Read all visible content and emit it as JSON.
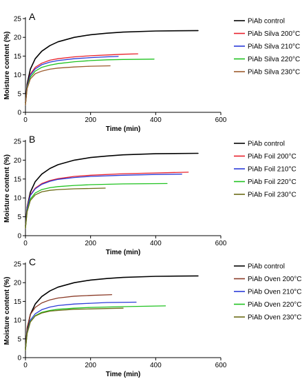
{
  "chart_data": [
    {
      "type": "line",
      "panel_label": "A",
      "xlabel": "Time (min)",
      "ylabel": "Moisture content (%)",
      "xlim": [
        0,
        600
      ],
      "ylim": [
        0,
        25
      ],
      "xticks": [
        0,
        200,
        400,
        600
      ],
      "yticks": [
        0,
        5,
        10,
        15,
        20,
        25
      ],
      "grid": false,
      "legend_position": "right",
      "series": [
        {
          "name": "PiAb control",
          "color": "#000000",
          "x": [
            0,
            5,
            15,
            30,
            50,
            75,
            100,
            150,
            200,
            250,
            300,
            400,
            530
          ],
          "values": [
            2.5,
            7.5,
            11.5,
            14.3,
            16.3,
            17.8,
            18.8,
            20.0,
            20.7,
            21.1,
            21.4,
            21.7,
            21.8
          ]
        },
        {
          "name": "PiAb Silva 200°C",
          "color": "#e8202a",
          "x": [
            0,
            5,
            15,
            30,
            50,
            75,
            100,
            150,
            200,
            250,
            300,
            345
          ],
          "values": [
            2,
            7,
            10.2,
            12.0,
            13.1,
            13.9,
            14.3,
            14.8,
            15.1,
            15.3,
            15.5,
            15.6
          ]
        },
        {
          "name": "PiAb Silva 210°C",
          "color": "#2a3ad8",
          "x": [
            0,
            5,
            15,
            30,
            50,
            75,
            100,
            150,
            200,
            250,
            285
          ],
          "values": [
            2,
            6.8,
            9.9,
            11.6,
            12.7,
            13.4,
            13.8,
            14.3,
            14.6,
            14.8,
            14.9
          ]
        },
        {
          "name": "PiAb Silva 220°C",
          "color": "#1ec21e",
          "x": [
            0,
            5,
            15,
            30,
            50,
            75,
            100,
            150,
            200,
            250,
            300,
            395
          ],
          "values": [
            2,
            6.5,
            9.4,
            11.0,
            12.0,
            12.6,
            13.0,
            13.5,
            13.8,
            14.0,
            14.1,
            14.2
          ]
        },
        {
          "name": "PiAb Silva 230°C",
          "color": "#9c5a2c",
          "x": [
            0,
            5,
            15,
            30,
            50,
            75,
            100,
            150,
            200,
            260
          ],
          "values": [
            2,
            6.3,
            8.9,
            10.3,
            11.0,
            11.5,
            11.8,
            12.1,
            12.3,
            12.4
          ]
        }
      ]
    },
    {
      "type": "line",
      "panel_label": "B",
      "xlabel": "Time (min)",
      "ylabel": "Moisture content (%)",
      "xlim": [
        0,
        600
      ],
      "ylim": [
        0,
        25
      ],
      "xticks": [
        0,
        200,
        400,
        600
      ],
      "yticks": [
        0,
        5,
        10,
        15,
        20,
        25
      ],
      "grid": false,
      "legend_position": "right",
      "series": [
        {
          "name": "PiAb control",
          "color": "#000000",
          "x": [
            0,
            5,
            15,
            30,
            50,
            75,
            100,
            150,
            200,
            250,
            300,
            400,
            530
          ],
          "values": [
            2.5,
            7.5,
            11.5,
            14.3,
            16.3,
            17.8,
            18.8,
            20.0,
            20.7,
            21.1,
            21.4,
            21.7,
            21.8
          ]
        },
        {
          "name": "PiAb Foil 200°C",
          "color": "#e8202a",
          "x": [
            0,
            5,
            15,
            30,
            50,
            75,
            100,
            150,
            200,
            300,
            400,
            500
          ],
          "values": [
            2,
            7.5,
            10.8,
            12.6,
            13.8,
            14.6,
            15.1,
            15.7,
            16.0,
            16.4,
            16.6,
            16.8
          ]
        },
        {
          "name": "PiAb Foil 210°C",
          "color": "#2a3ad8",
          "x": [
            0,
            5,
            15,
            30,
            50,
            75,
            100,
            150,
            200,
            300,
            400,
            480
          ],
          "values": [
            2,
            7.2,
            10.6,
            12.4,
            13.6,
            14.4,
            14.9,
            15.4,
            15.7,
            16.0,
            16.2,
            16.3
          ]
        },
        {
          "name": "PiAb Foil 220°C",
          "color": "#1ec21e",
          "x": [
            0,
            5,
            15,
            30,
            50,
            75,
            100,
            150,
            200,
            300,
            435
          ],
          "values": [
            2,
            6.5,
            9.7,
            11.3,
            12.2,
            12.7,
            13.0,
            13.3,
            13.5,
            13.7,
            13.8
          ]
        },
        {
          "name": "PiAb Foil 230°C",
          "color": "#6b6b14",
          "x": [
            0,
            5,
            15,
            30,
            50,
            75,
            100,
            150,
            200,
            245
          ],
          "values": [
            2,
            6.3,
            9.3,
            10.8,
            11.6,
            12.0,
            12.2,
            12.4,
            12.5,
            12.6
          ]
        }
      ]
    },
    {
      "type": "line",
      "panel_label": "C",
      "xlabel": "Time (min)",
      "ylabel": "Moisture content (%)",
      "xlim": [
        0,
        600
      ],
      "ylim": [
        0,
        25
      ],
      "xticks": [
        0,
        200,
        400,
        600
      ],
      "yticks": [
        0,
        5,
        10,
        15,
        20,
        25
      ],
      "grid": false,
      "legend_position": "right",
      "series": [
        {
          "name": "PiAb control",
          "color": "#000000",
          "x": [
            0,
            5,
            15,
            30,
            50,
            75,
            100,
            150,
            200,
            250,
            300,
            400,
            530
          ],
          "values": [
            2.5,
            7.5,
            11.5,
            14.3,
            16.3,
            17.8,
            18.8,
            20.0,
            20.7,
            21.1,
            21.4,
            21.7,
            21.8
          ]
        },
        {
          "name": "PiAb Oven 200°C",
          "color": "#8a3a26",
          "x": [
            0,
            5,
            15,
            30,
            50,
            75,
            100,
            150,
            200,
            265
          ],
          "values": [
            2,
            8.0,
            11.5,
            13.4,
            14.6,
            15.4,
            15.9,
            16.4,
            16.6,
            16.8
          ]
        },
        {
          "name": "PiAb Oven 210°C",
          "color": "#2a3ad8",
          "x": [
            0,
            5,
            15,
            30,
            50,
            75,
            100,
            150,
            200,
            250,
            340
          ],
          "values": [
            2,
            6.8,
            10.0,
            11.7,
            12.8,
            13.5,
            13.9,
            14.3,
            14.5,
            14.7,
            14.8
          ]
        },
        {
          "name": "PiAb Oven 220°C",
          "color": "#1ec21e",
          "x": [
            0,
            5,
            15,
            30,
            50,
            75,
            100,
            150,
            200,
            300,
            430
          ],
          "values": [
            2,
            6.5,
            9.6,
            11.2,
            12.1,
            12.6,
            12.9,
            13.2,
            13.4,
            13.6,
            13.8
          ]
        },
        {
          "name": "PiAb Oven 230°C",
          "color": "#6b6b14",
          "x": [
            0,
            5,
            15,
            30,
            50,
            75,
            100,
            150,
            200,
            250,
            300
          ],
          "values": [
            2,
            6.4,
            9.5,
            11.1,
            11.9,
            12.4,
            12.6,
            12.9,
            13.0,
            13.1,
            13.2
          ]
        }
      ]
    }
  ]
}
